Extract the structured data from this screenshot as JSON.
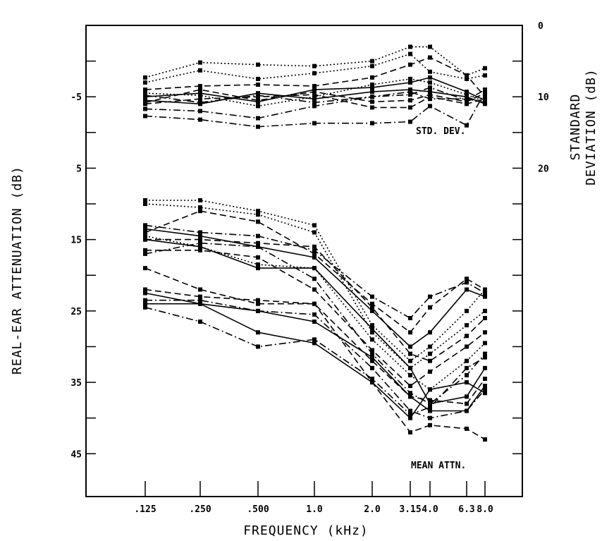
{
  "chart_data": {
    "type": "line",
    "xlabel": "FREQUENCY (kHz)",
    "ylabel_left": "REAL-EAR ATTENUATION (dB)",
    "ylabel_right": "STANDARD\nDEVIATION (dB)",
    "x_categories": [
      ".125",
      ".250",
      ".500",
      "1.0",
      "2.0",
      "3.15",
      "4.0",
      "6.3",
      "8.0"
    ],
    "left_axis": {
      "ticks": [
        -5,
        5,
        15,
        25,
        35,
        45
      ],
      "range": [
        -15,
        51
      ],
      "inverted": true
    },
    "right_axis": {
      "ticks": [
        0,
        10,
        20
      ],
      "range": [
        0,
        66
      ]
    },
    "annotations": [
      "STD. DEV.",
      "MEAN ATTN."
    ],
    "grid": false,
    "line_color": "#000000",
    "std_dev_series": [
      {
        "style": "dotted",
        "values": [
          7.3,
          5.2,
          5.5,
          5.7,
          5.0,
          3.0,
          3.0,
          7.0,
          6.0
        ]
      },
      {
        "style": "dashdot",
        "values": [
          12.7,
          13.2,
          14.2,
          13.7,
          13.7,
          13.5,
          11.3,
          14.0,
          9.3
        ]
      },
      {
        "style": "dotted",
        "values": [
          8.0,
          6.3,
          7.5,
          6.7,
          5.7,
          4.0,
          6.5,
          7.5,
          7.0
        ]
      },
      {
        "style": "dashed",
        "values": [
          9.0,
          8.5,
          8.3,
          8.5,
          7.3,
          5.5,
          4.5,
          7.0,
          10.0
        ]
      },
      {
        "style": "solid",
        "values": [
          10.0,
          9.5,
          10.7,
          9.0,
          8.7,
          8.0,
          7.3,
          9.3,
          10.5
        ]
      },
      {
        "style": "dashdot",
        "values": [
          11.7,
          12.0,
          13.0,
          11.3,
          10.0,
          9.7,
          8.7,
          10.5,
          9.0
        ]
      },
      {
        "style": "dashed",
        "values": [
          11.0,
          10.3,
          10.0,
          9.7,
          11.5,
          11.5,
          10.0,
          11.0,
          10.3
        ]
      },
      {
        "style": "solid",
        "values": [
          10.5,
          11.0,
          9.5,
          10.3,
          9.3,
          9.0,
          9.3,
          10.0,
          11.0
        ]
      },
      {
        "style": "dotted",
        "values": [
          9.5,
          9.8,
          11.3,
          10.0,
          8.3,
          7.5,
          8.0,
          9.7,
          10.7
        ]
      },
      {
        "style": "dashed",
        "values": [
          10.8,
          9.0,
          10.5,
          9.3,
          10.7,
          10.5,
          9.7,
          10.7,
          9.5
        ]
      },
      {
        "style": "dashdot",
        "values": [
          9.8,
          10.8,
          9.8,
          10.8,
          10.0,
          9.3,
          10.3,
          10.3,
          10.8
        ]
      }
    ],
    "mean_attn_series": [
      {
        "style": "dotted",
        "values": [
          9.5,
          9.5,
          11.0,
          13.0,
          27.0,
          32.0,
          30.0,
          25.0,
          22.0
        ]
      },
      {
        "style": "dotted",
        "values": [
          10.0,
          10.5,
          11.5,
          14.0,
          28.0,
          33.0,
          31.0,
          27.0,
          25.0
        ]
      },
      {
        "style": "dashed",
        "values": [
          14.0,
          11.0,
          12.5,
          17.0,
          24.0,
          28.0,
          24.5,
          20.5,
          22.0
        ]
      },
      {
        "style": "dashdot",
        "values": [
          13.0,
          14.0,
          14.5,
          16.5,
          23.0,
          26.0,
          23.0,
          21.0,
          22.5
        ]
      },
      {
        "style": "solid",
        "values": [
          13.5,
          14.5,
          16.0,
          17.5,
          25.0,
          30.0,
          28.0,
          22.0,
          23.0
        ]
      },
      {
        "style": "dashed",
        "values": [
          15.0,
          15.0,
          15.5,
          16.0,
          24.5,
          31.0,
          32.0,
          28.5,
          26.0
        ]
      },
      {
        "style": "dotted",
        "values": [
          14.5,
          16.0,
          18.5,
          19.0,
          29.0,
          34.0,
          36.0,
          32.0,
          29.5
        ]
      },
      {
        "style": "dashed",
        "values": [
          16.5,
          16.5,
          17.5,
          22.0,
          30.5,
          35.5,
          33.5,
          30.0,
          28.0
        ]
      },
      {
        "style": "dashdot",
        "values": [
          17.0,
          15.5,
          16.0,
          20.5,
          31.0,
          36.5,
          38.0,
          34.0,
          31.0
        ]
      },
      {
        "style": "solid",
        "values": [
          15.0,
          16.0,
          19.0,
          19.0,
          27.5,
          33.0,
          38.0,
          37.0,
          33.0
        ]
      },
      {
        "style": "dashed",
        "values": [
          19.0,
          22.0,
          24.0,
          24.0,
          32.0,
          37.0,
          37.5,
          38.0,
          34.5
        ]
      },
      {
        "style": "solid",
        "values": [
          22.5,
          24.0,
          25.0,
          26.5,
          31.5,
          37.0,
          39.0,
          39.0,
          35.5
        ]
      },
      {
        "style": "dashdot",
        "values": [
          23.5,
          23.5,
          25.0,
          25.5,
          33.0,
          39.0,
          40.0,
          39.0,
          36.0
        ]
      },
      {
        "style": "dashed",
        "values": [
          22.0,
          23.0,
          23.5,
          24.0,
          35.0,
          42.0,
          41.0,
          41.5,
          43.0
        ]
      },
      {
        "style": "dashdot",
        "values": [
          24.5,
          26.5,
          30.0,
          29.0,
          34.5,
          39.5,
          38.5,
          33.0,
          31.5
        ]
      },
      {
        "style": "solid",
        "values": [
          24.0,
          24.0,
          28.0,
          29.5,
          35.0,
          40.0,
          36.0,
          35.0,
          36.5
        ]
      }
    ]
  }
}
